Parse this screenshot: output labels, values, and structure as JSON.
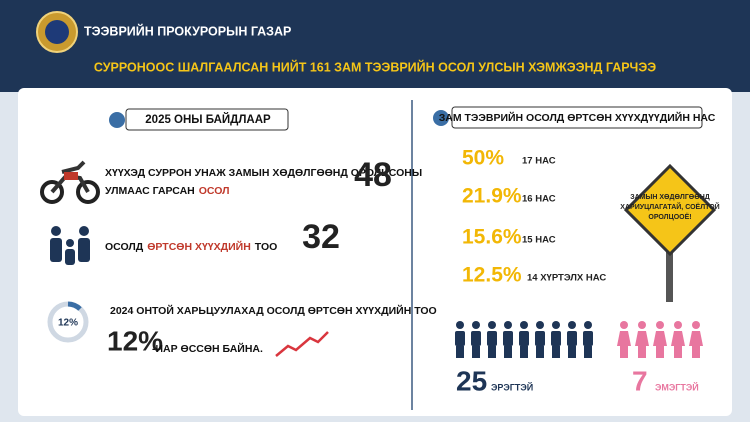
{
  "header": {
    "organization": "ТЭЭВРИЙН ПРОКУРОРЫН ГАЗАР",
    "title": "СУРРОНООС ШАЛГААЛСАН НИЙТ 161 ЗАМ ТЭЭВРИЙН ОСОЛ УЛСЫН ХЭМЖЭЭНД ГАРЧЭЭ"
  },
  "left": {
    "label": "2025 ОНЫ БАЙДЛААР",
    "accidents": {
      "line1": "ХҮҮХЭД СУРРОН УНАЖ ЗАМЫН ХӨДӨЛГӨӨНД  ОРОЛЦСОНЫ",
      "line2": "УЛМААС ГАРСАН",
      "highlight": "ОСОЛ",
      "value": "48"
    },
    "children": {
      "before": "ОСОЛД",
      "highlight": "ӨРТСӨН ХҮҮХДИЙН",
      "after": "ТОО",
      "value": "32"
    },
    "growth": {
      "badge": "12%",
      "text": "2024 ОНТОЙ ХАРЬЦУУЛАХАД ОСОЛД ӨРТСӨН ХҮҮХДИЙН ТОО",
      "value": "12%",
      "suffix": "-ИАР ӨССӨН БАЙНА."
    }
  },
  "right": {
    "label": "ЗАМ ТЭЭВРИЙН ОСОЛД ӨРТСӨН ХҮҮХДҮҮДИЙН НАС",
    "ages": [
      {
        "share": "50%",
        "age": "17 НАС"
      },
      {
        "share": "21.9%",
        "age": "16 НАС"
      },
      {
        "share": "15.6%",
        "age": "15 НАС"
      },
      {
        "share": "12.5%",
        "age": "14 ХҮРТЭЛХ НАС"
      }
    ],
    "sign": [
      "ЗАМЫН ХӨДӨЛГӨӨНД",
      "ХАРИУЦЛАГАТАЙ, СОЁЛТОЙ",
      "ОРОЛЦООЁ!"
    ],
    "male": {
      "value": "25",
      "label": "ЭРЭГТЭЙ"
    },
    "female": {
      "value": "7",
      "label": "ЭМЭГТЭЙ"
    }
  }
}
